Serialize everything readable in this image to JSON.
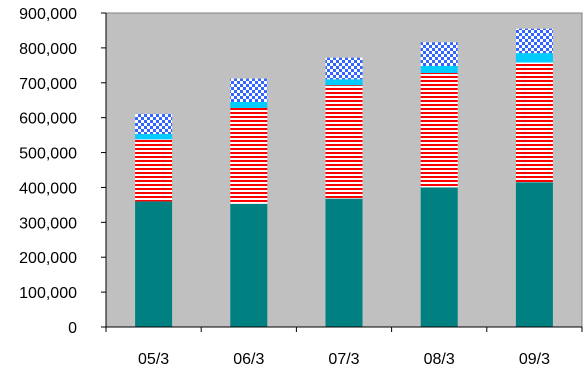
{
  "chart_data": {
    "type": "bar",
    "stacked": true,
    "categories": [
      "05/3",
      "06/3",
      "07/3",
      "08/3",
      "09/3"
    ],
    "ylim": [
      0,
      900000
    ],
    "yticks": [
      0,
      100000,
      200000,
      300000,
      400000,
      500000,
      600000,
      700000,
      800000,
      900000
    ],
    "ytick_labels": [
      "0",
      "100,000",
      "200,000",
      "300,000",
      "400,000",
      "500,000",
      "600,000",
      "700,000",
      "800,000",
      "900,000"
    ],
    "grid": false,
    "legend": "none",
    "plot_background": "#c0c0c0",
    "series": [
      {
        "values": [
          360000,
          353000,
          368000,
          400000,
          415000
        ],
        "color": "#008080",
        "pattern": "solid"
      },
      {
        "values": [
          178000,
          275000,
          325000,
          328000,
          343000
        ],
        "color": "#ff0000",
        "pattern": "horizontal-stripes"
      },
      {
        "values": [
          15000,
          17000,
          17000,
          20000,
          27000
        ],
        "color": "#00ccff",
        "pattern": "solid"
      },
      {
        "values": [
          58000,
          67000,
          62000,
          68000,
          70000
        ],
        "color": "#3366ff",
        "pattern": "checkerboard"
      }
    ]
  }
}
